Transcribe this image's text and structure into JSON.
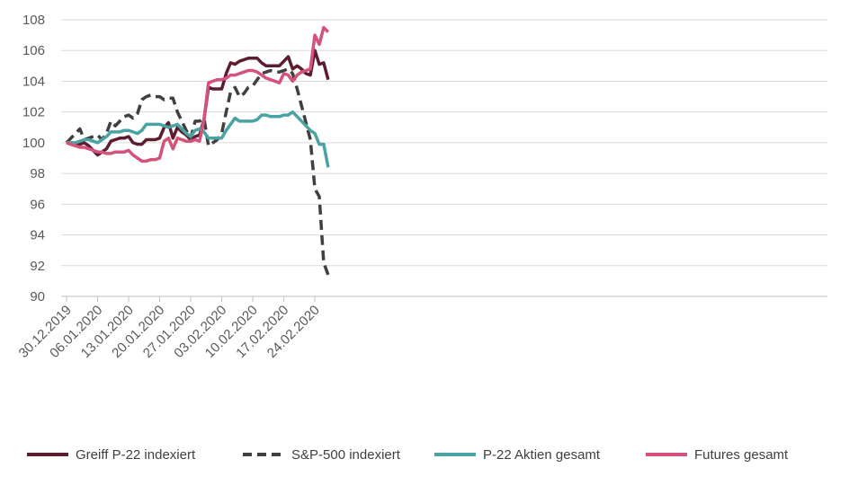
{
  "chart_data": {
    "type": "line",
    "title": "",
    "xlabel": "",
    "ylabel": "",
    "ylim": [
      90,
      108
    ],
    "yticks": [
      90,
      92,
      94,
      96,
      98,
      100,
      102,
      104,
      106,
      108
    ],
    "grid": true,
    "legend_position": "bottom",
    "x_start_date": "30.12.2019",
    "n_points": 60,
    "x_tick_labels": [
      {
        "index": 0,
        "label": "30.12.2019"
      },
      {
        "index": 7,
        "label": "06.01.2020"
      },
      {
        "index": 14,
        "label": "13.01.2020"
      },
      {
        "index": 21,
        "label": "20.01.2020"
      },
      {
        "index": 28,
        "label": "27.01.2020"
      },
      {
        "index": 35,
        "label": "03.02.2020"
      },
      {
        "index": 42,
        "label": "10.02.2020"
      },
      {
        "index": 49,
        "label": "17.02.2020"
      },
      {
        "index": 56,
        "label": "24.02.2020"
      }
    ],
    "series": [
      {
        "name": "Greiff P-22 indexiert",
        "color": "#5c1d2e",
        "style": "solid",
        "values": [
          100.0,
          99.9,
          99.8,
          99.9,
          100.0,
          99.8,
          99.5,
          99.2,
          99.4,
          99.6,
          100.1,
          100.2,
          100.3,
          100.3,
          100.4,
          100.0,
          99.9,
          99.9,
          100.2,
          100.2,
          100.2,
          100.3,
          101.0,
          101.3,
          100.3,
          101.0,
          100.7,
          100.5,
          100.2,
          100.4,
          100.5,
          101.5,
          103.6,
          103.5,
          103.5,
          103.5,
          104.5,
          105.2,
          105.1,
          105.3,
          105.4,
          105.5,
          105.5,
          105.5,
          105.2,
          105.0,
          105.0,
          105.0,
          105.0,
          105.3,
          105.6,
          104.8,
          105.0,
          104.8,
          104.5,
          104.4,
          106.0,
          105.1,
          105.2,
          104.1
        ]
      },
      {
        "name": "S&P-500 indexiert",
        "color": "#404040",
        "style": "dashed",
        "values": [
          100.0,
          100.3,
          100.6,
          100.9,
          100.2,
          100.3,
          100.4,
          100.5,
          100.2,
          100.6,
          101.4,
          101.1,
          101.4,
          101.7,
          101.8,
          101.6,
          101.9,
          102.8,
          103.0,
          103.1,
          103.0,
          103.0,
          102.8,
          102.9,
          102.9,
          102.0,
          101.4,
          100.8,
          100.3,
          101.4,
          101.4,
          101.6,
          99.8,
          100.0,
          100.2,
          100.6,
          102.0,
          103.3,
          103.6,
          103.0,
          103.2,
          103.6,
          103.7,
          104.1,
          104.5,
          104.6,
          104.7,
          104.6,
          104.6,
          104.7,
          104.8,
          104.5,
          103.5,
          102.4,
          101.3,
          100.2,
          97.0,
          96.5,
          92.2,
          91.4
        ]
      },
      {
        "name": "P-22 Aktien gesamt",
        "color": "#4aa3a3",
        "style": "solid",
        "values": [
          100.0,
          100.0,
          100.0,
          100.1,
          100.2,
          100.2,
          100.1,
          100.0,
          100.2,
          100.4,
          100.7,
          100.7,
          100.7,
          100.8,
          100.8,
          100.7,
          100.6,
          100.8,
          101.2,
          101.2,
          101.2,
          101.2,
          101.1,
          101.0,
          101.1,
          101.2,
          100.9,
          100.6,
          100.4,
          100.8,
          100.9,
          100.7,
          100.3,
          100.3,
          100.3,
          100.3,
          100.8,
          101.2,
          101.6,
          101.4,
          101.4,
          101.4,
          101.4,
          101.5,
          101.8,
          101.8,
          101.7,
          101.7,
          101.7,
          101.8,
          101.8,
          102.0,
          101.7,
          101.4,
          101.1,
          100.8,
          100.6,
          99.9,
          99.9,
          98.4
        ]
      },
      {
        "name": "Futures gesamt",
        "color": "#d3537a",
        "style": "solid",
        "values": [
          100.0,
          99.9,
          99.8,
          99.7,
          99.7,
          99.6,
          99.5,
          99.4,
          99.4,
          99.3,
          99.3,
          99.4,
          99.4,
          99.4,
          99.5,
          99.2,
          99.0,
          98.8,
          98.8,
          98.9,
          98.9,
          99.0,
          100.1,
          100.3,
          99.6,
          100.3,
          100.2,
          100.1,
          100.1,
          100.2,
          100.1,
          101.5,
          103.9,
          104.0,
          104.1,
          104.1,
          104.2,
          104.4,
          104.4,
          104.5,
          104.6,
          104.7,
          104.7,
          104.6,
          104.4,
          104.2,
          104.1,
          104.0,
          103.9,
          104.5,
          104.4,
          104.0,
          104.4,
          104.6,
          104.7,
          104.8,
          107.0,
          106.4,
          107.5,
          107.2
        ]
      }
    ]
  }
}
